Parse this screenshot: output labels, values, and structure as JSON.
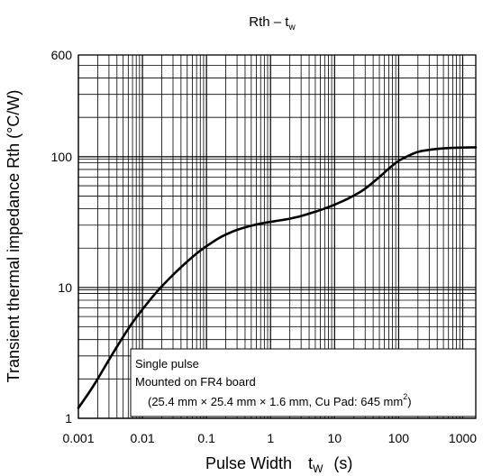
{
  "chart_data": {
    "type": "line",
    "title": {
      "main": "Rth – t",
      "sub": "w"
    },
    "xlabel": {
      "main": "Pulse Width",
      "var": "t",
      "sub": "W",
      "unit": "(s)"
    },
    "ylabel": "Transient thermal impedance Rth (°C/W)",
    "x_scale": "log",
    "y_scale": "log",
    "xlim": [
      0.001,
      1600
    ],
    "ylim": [
      1,
      600
    ],
    "x_ticks": [
      {
        "value": 0.001,
        "label": "0.001"
      },
      {
        "value": 0.01,
        "label": "0.01"
      },
      {
        "value": 0.1,
        "label": "0.1"
      },
      {
        "value": 1,
        "label": "1"
      },
      {
        "value": 10,
        "label": "10"
      },
      {
        "value": 100,
        "label": "100"
      },
      {
        "value": 1000,
        "label": "1000"
      }
    ],
    "y_ticks": [
      {
        "value": 1,
        "label": "1"
      },
      {
        "value": 10,
        "label": "10"
      },
      {
        "value": 100,
        "label": "100"
      },
      {
        "value": 600,
        "label": "600"
      }
    ],
    "grid": true,
    "series": [
      {
        "x": [
          0.001,
          0.0015,
          0.002,
          0.003,
          0.005,
          0.007,
          0.01,
          0.015,
          0.02,
          0.03,
          0.05,
          0.07,
          0.1,
          0.15,
          0.2,
          0.3,
          0.5,
          0.7,
          1,
          1.5,
          2,
          3,
          5,
          7,
          10,
          15,
          20,
          30,
          50,
          70,
          100,
          150,
          200,
          300,
          500,
          700,
          1000,
          1600
        ],
        "y": [
          1.2,
          1.6,
          2.0,
          2.8,
          4.2,
          5.4,
          6.8,
          8.7,
          10.2,
          12.5,
          15.8,
          18.2,
          20.7,
          23.6,
          25.4,
          27.6,
          29.7,
          30.8,
          31.8,
          32.8,
          33.6,
          35.2,
          38.0,
          40.2,
          43.0,
          47.0,
          50.5,
          57.0,
          70.0,
          81.0,
          93.0,
          103.0,
          109.0,
          113.0,
          116.0,
          117.0,
          117.5,
          118.0
        ]
      }
    ],
    "annotation": {
      "line1": "Single pulse",
      "line2": "Mounted on FR4 board",
      "line3": "(25.4 mm × 25.4 mm × 1.6 mm, Cu Pad: 645 mm",
      "line3_sup": "2",
      "line3_end": ")"
    }
  }
}
